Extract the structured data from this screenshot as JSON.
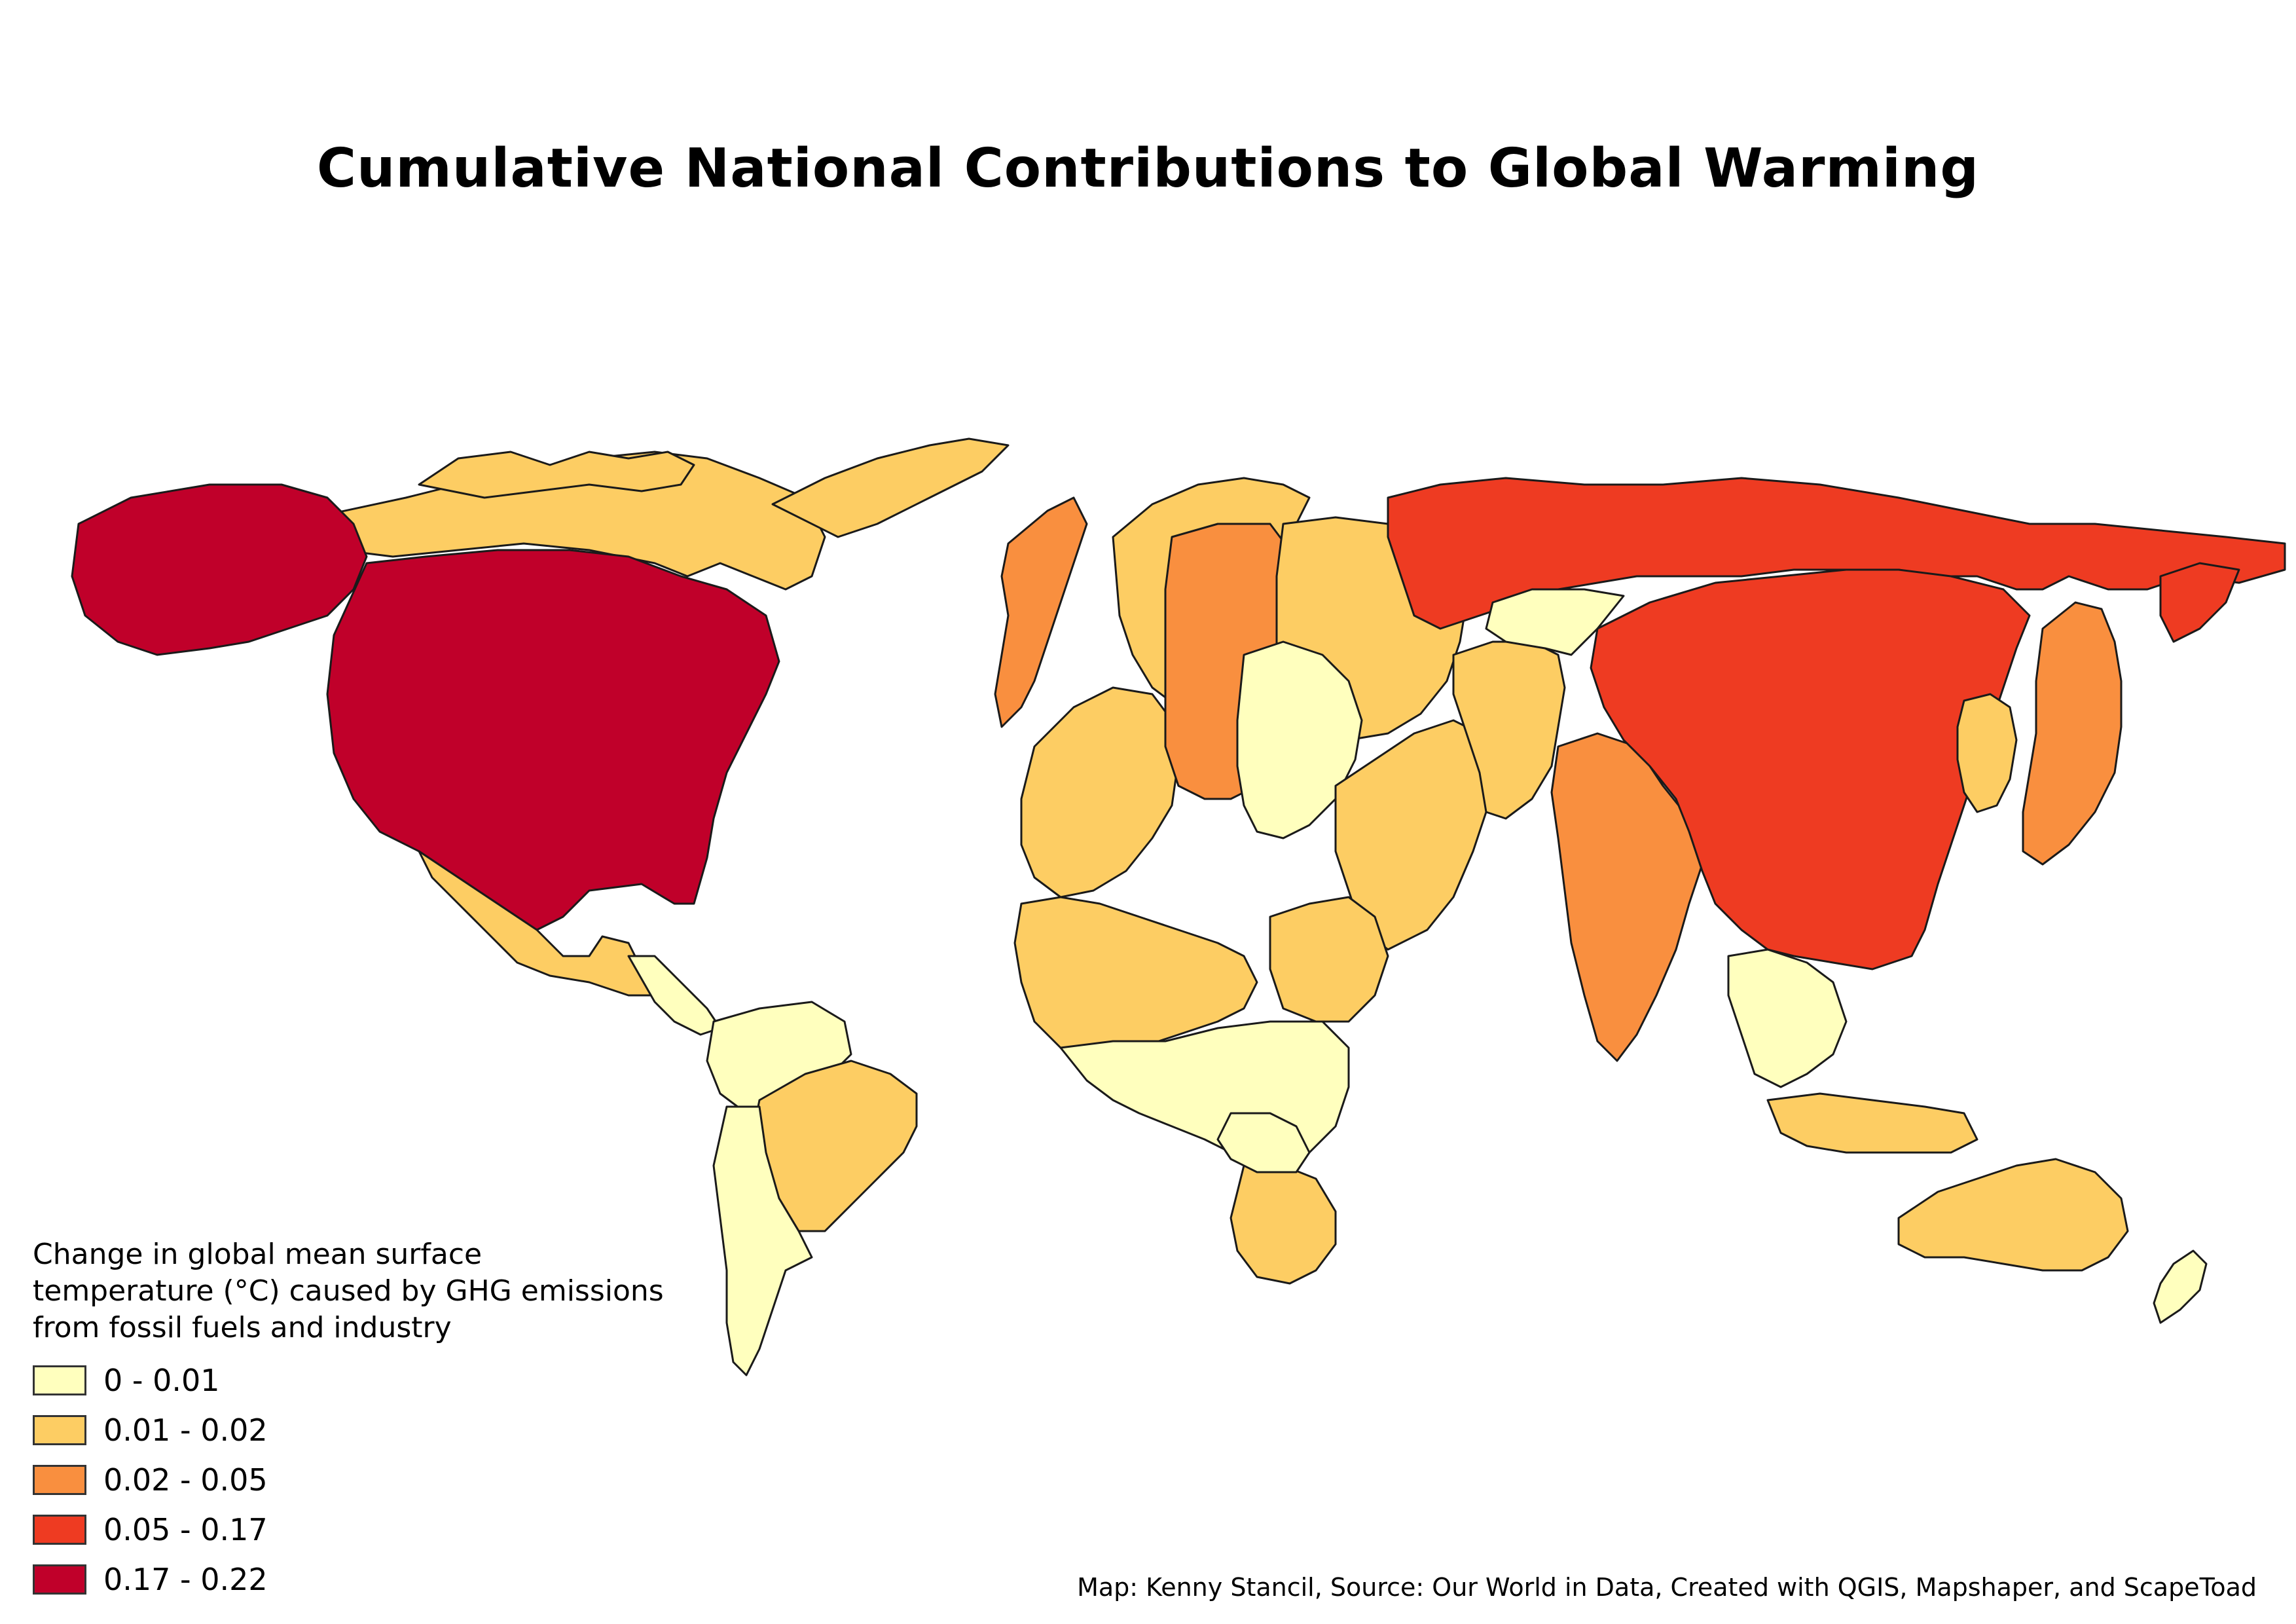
{
  "title": "Cumulative National Contributions to Global Warming",
  "legend": {
    "title_lines": [
      "Change in global mean surface",
      "temperature (°C) caused by GHG emissions",
      "from fossil fuels and industry"
    ],
    "items": [
      {
        "label": "0 - 0.01",
        "color": "#ffffbe"
      },
      {
        "label": "0.01 - 0.02",
        "color": "#fdcd63"
      },
      {
        "label": "0.02 - 0.05",
        "color": "#f98f3f"
      },
      {
        "label": "0.05 - 0.17",
        "color": "#ee3b22"
      },
      {
        "label": "0.17 - 0.22",
        "color": "#c0002a"
      }
    ]
  },
  "credit": "Map: Kenny Stancil, Source: Our World in Data, Created with QGIS, Mapshaper, and ScapeToad"
}
